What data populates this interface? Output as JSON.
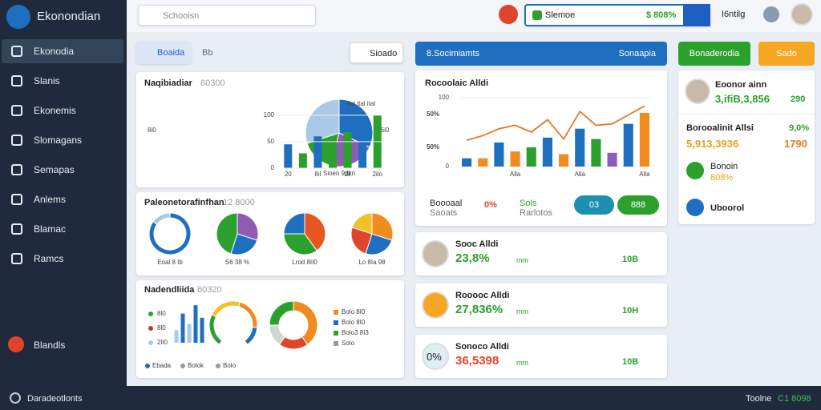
{
  "sidebar": {
    "brand": "Ekonondian",
    "menu": [
      "Ekonodia",
      "Slanis",
      "Ekonemis",
      "Slomagans",
      "Semapas",
      "Anlems",
      "Blamac",
      "Ramcs"
    ],
    "bottom_item": "Blandls"
  },
  "topbar": {
    "search": "Schooisn",
    "quick": {
      "label": "Slemoe",
      "value": "$ 808%"
    },
    "user": "I6ntilg"
  },
  "tabs": {
    "active": "Boaida",
    "other": "Bb",
    "button": "Sioado"
  },
  "panel1": {
    "title": "Naqibiadiar",
    "code": "60300",
    "side_labels": [
      "8i0",
      "6i0"
    ],
    "pie": {
      "label": "Sioen 9dkn",
      "values": [
        32,
        22,
        16,
        30
      ],
      "colors": [
        "#1f6fc0",
        "#8e5bb5",
        "#2ca02c",
        "#a9c9e6"
      ]
    },
    "bars": {
      "legend": "IIat ital ital",
      "ylim": [
        0,
        130
      ],
      "yticks": [
        0,
        50,
        100
      ],
      "categories": [
        "20",
        null,
        "8il",
        null,
        "2il",
        null,
        "2ilo"
      ],
      "values": [
        45,
        28,
        60,
        55,
        68,
        70,
        100
      ],
      "colors": [
        "#1f6fc0",
        "#2ca02c",
        "#1f6fc0",
        "#2ca02c",
        "#2ca02c",
        "#1f6fc0",
        "#2ca02c"
      ]
    }
  },
  "panel2": {
    "title": "Paleonetorafinfhan",
    "code": "12 8000",
    "pies": [
      {
        "label": "Eoal 8 Ib",
        "values": [
          85,
          15
        ],
        "colors": [
          "#1f6fc0",
          "#a9c9e6"
        ]
      },
      {
        "label": "S6 38 %",
        "values": [
          30,
          25,
          45
        ],
        "colors": [
          "#8e5bb5",
          "#1f6fc0",
          "#2ca02c"
        ]
      },
      {
        "label": "Lrod 8II0",
        "values": [
          40,
          35,
          25
        ],
        "colors": [
          "#e8561f",
          "#2ca02c",
          "#1f6fc0"
        ]
      },
      {
        "label": "Lo 8Ia 98",
        "values": [
          30,
          25,
          25,
          20
        ],
        "colors": [
          "#f28a1e",
          "#1f6fc0",
          "#e0452b",
          "#f2c029"
        ]
      }
    ]
  },
  "panel3": {
    "title": "Nadendliida",
    "code": "60320",
    "legend_left": {
      "labels": [
        "8l0",
        "8l0",
        "2Il0"
      ],
      "colors": [
        "#2ca02c",
        "#c0392b",
        "#a9c9e6"
      ]
    },
    "bars": {
      "ylim": [
        0,
        100
      ],
      "values": [
        30,
        70,
        45,
        90,
        60
      ],
      "colors": [
        "#a9c9e6",
        "#1f6fc0",
        "#a9c9e6",
        "#1f6fc0",
        "#1f6fc0"
      ]
    },
    "gauge": {
      "values": [
        25,
        25,
        25,
        15
      ],
      "colors": [
        "#2ca02c",
        "#f2c029",
        "#f28a1e",
        "#1f6fc0"
      ]
    },
    "donut": {
      "values": [
        40,
        20,
        15,
        25
      ],
      "colors": [
        "#f28a1e",
        "#e0452b",
        "#cfd8cf",
        "#2ca02c"
      ]
    },
    "legend_right": {
      "labels": [
        "Bolo 8I0",
        "Bolo 8I0",
        "Bolo3 8I3",
        "Solo"
      ],
      "colors": [
        "#f28a1e",
        "#1f6fc0",
        "#2ca02c",
        "#999999"
      ]
    },
    "footer": [
      "Ebada",
      "Bolok",
      "Bolo"
    ]
  },
  "middle": {
    "header": {
      "title": "8.Socimiamts",
      "action": "Sonaapia"
    },
    "chart": {
      "title": "Rocoolaic Alldi",
      "ylim": [
        0,
        100
      ],
      "yticks": [
        0,
        100
      ],
      "annotations": [
        "50%",
        "50%"
      ],
      "categories": [
        null,
        null,
        null,
        "Alla",
        null,
        null,
        null,
        "Alla",
        null,
        null,
        null,
        "Alla"
      ],
      "bar_values": [
        12,
        12,
        35,
        22,
        28,
        42,
        18,
        55,
        40,
        20,
        62,
        78
      ],
      "bar_colors": [
        "#1f6fc0",
        "#f28a1e",
        "#1f6fc0",
        "#f28a1e",
        "#2ca02c",
        "#1f6fc0",
        "#f28a1e",
        "#1f6fc0",
        "#2ca02c",
        "#8e5bb5",
        "#1f6fc0",
        "#f28a1e"
      ],
      "line_values": [
        38,
        45,
        55,
        60,
        50,
        68,
        40,
        80,
        60,
        62,
        75,
        88
      ],
      "line_color": "#e8781f"
    },
    "stats": {
      "a_label": "Boooaal",
      "a_sub": "Saoats",
      "b": "0%",
      "c_label": "Sols",
      "c_sub": "Rarlotos",
      "toggle": [
        "03",
        "888"
      ]
    },
    "cards": [
      {
        "title": "Sooc Alldi",
        "value": "23,8%",
        "unit": "mm",
        "right": "10B"
      },
      {
        "title": "Rooooc Alldi",
        "value": "27,836%",
        "unit": "mm",
        "right": "10H"
      },
      {
        "title": "Sonoco Alldi",
        "value": "36,5398",
        "unit": "mm",
        "right": "10B",
        "badge": "0%"
      }
    ]
  },
  "right": {
    "buttons": [
      "Bonaderodia",
      "Sado"
    ],
    "profile": {
      "name": "Eoonor ainn",
      "value": "3,ifiB,3,856",
      "right": "290"
    },
    "stat": {
      "title": "Borooalinit Allsi",
      "pct": "9,0%",
      "value": "5,913,3936",
      "right": "1790"
    },
    "item1": {
      "title": "Bonoin",
      "sub": "808%"
    },
    "item2": "Uboorol"
  },
  "footer": {
    "left": "Daradeotlonts",
    "right_label": "Toolne",
    "right_value": "C1 8098"
  }
}
